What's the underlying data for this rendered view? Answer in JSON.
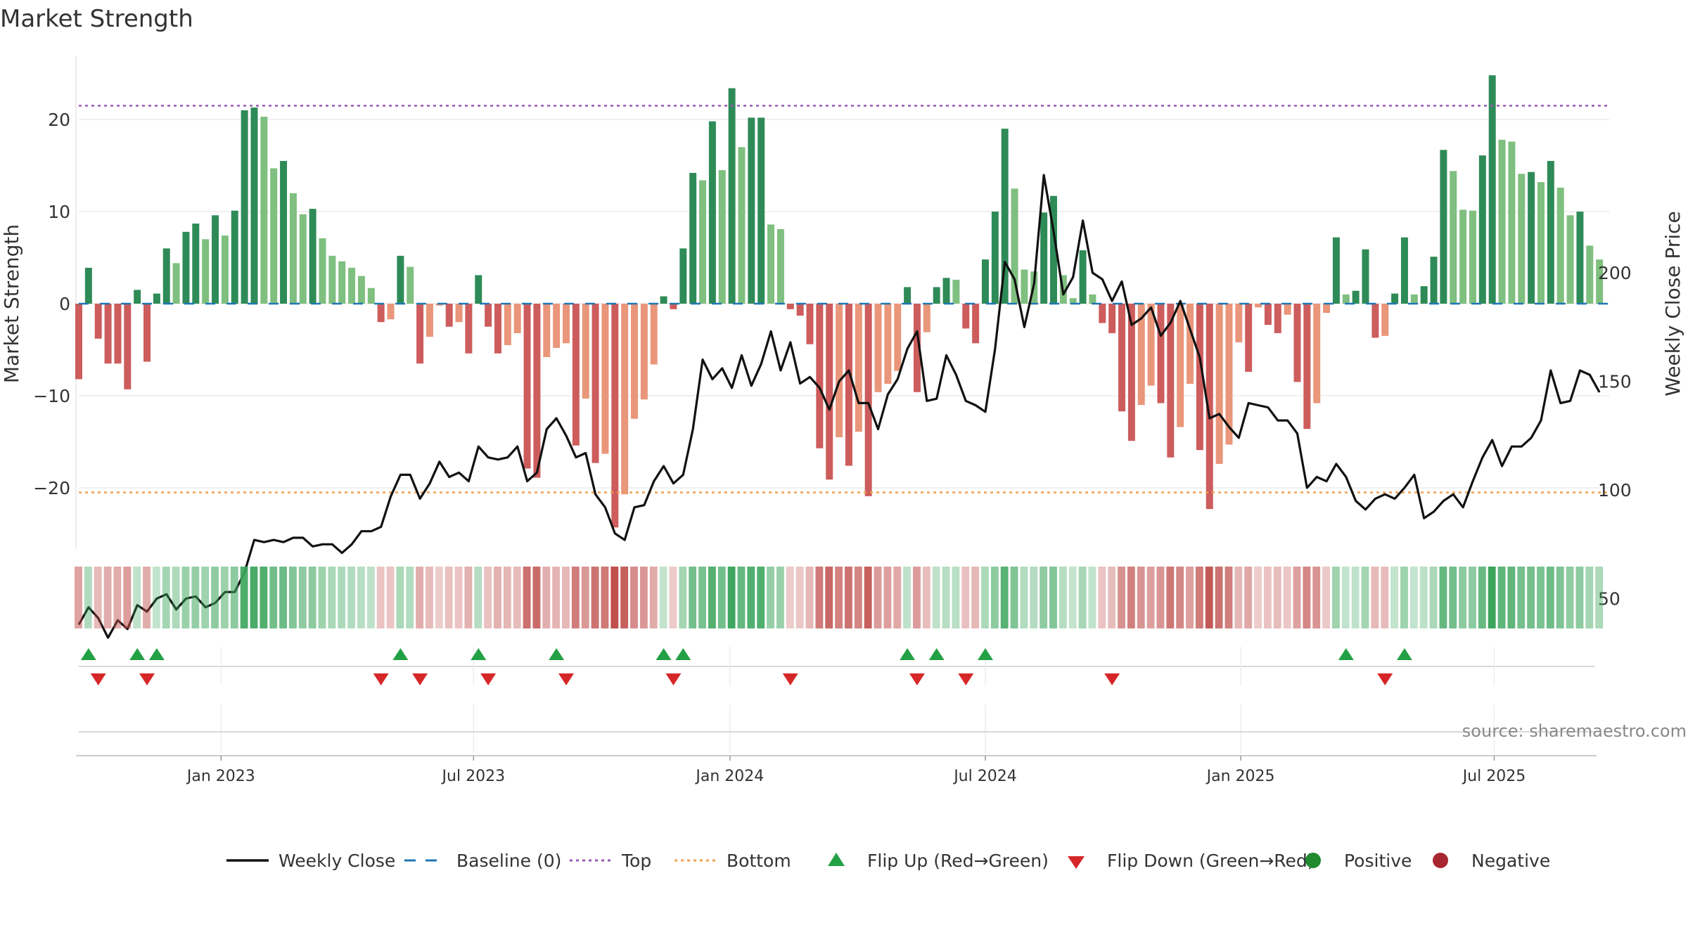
{
  "chart_data": {
    "type": "bar",
    "title": "Market Strength",
    "ylabel_left": "Market Strength",
    "ylabel_right": "Weekly Close Price",
    "source": "source: sharemaestro.com",
    "left_axis": {
      "ylim": [
        -26,
        27
      ],
      "ticks": [
        -20,
        -10,
        0,
        10,
        20
      ],
      "tick_labels": [
        "−20",
        "−10",
        "0",
        "10",
        "20"
      ]
    },
    "right_axis": {
      "ylim": [
        15,
        270
      ],
      "ticks": [
        50,
        100,
        150,
        200
      ],
      "tick_labels": [
        "50",
        "100",
        "150",
        "200"
      ]
    },
    "top_line": 21.5,
    "bottom_line": -20.5,
    "baseline": 0,
    "x_range_weeks": [
      0,
      157
    ],
    "x_ticks": [
      {
        "label": "Jan 2023",
        "week": 14.6
      },
      {
        "label": "Jul 2023",
        "week": 40.5
      },
      {
        "label": "Jan 2024",
        "week": 66.8
      },
      {
        "label": "Jul 2024",
        "week": 93.0
      },
      {
        "label": "Jan 2025",
        "week": 119.2
      },
      {
        "label": "Jul 2025",
        "week": 145.2
      }
    ],
    "strength_values": [
      -8.2,
      3.9,
      -3.8,
      -6.5,
      -6.5,
      -9.3,
      1.5,
      -6.3,
      1.1,
      6.0,
      4.4,
      7.8,
      8.7,
      7.0,
      9.6,
      7.4,
      10.1,
      21.0,
      21.3,
      20.3,
      14.7,
      15.5,
      12.0,
      9.7,
      10.3,
      7.1,
      5.2,
      4.6,
      3.9,
      3.0,
      1.7,
      -2.0,
      -1.7,
      5.2,
      4.0,
      -6.5,
      -3.6,
      -0.2,
      -2.5,
      -2.0,
      -5.4,
      3.1,
      -2.5,
      -5.4,
      -4.5,
      -3.2,
      -17.9,
      -18.9,
      -5.8,
      -4.8,
      -4.3,
      -15.4,
      -10.3,
      -17.3,
      -16.3,
      -24.3,
      -20.7,
      -12.5,
      -10.4,
      -6.6,
      0.8,
      -0.6,
      6.0,
      14.2,
      13.4,
      19.8,
      14.5,
      23.4,
      17.0,
      20.2,
      20.2,
      8.6,
      8.1,
      -0.6,
      -1.3,
      -4.4,
      -15.7,
      -19.1,
      -14.5,
      -17.6,
      -13.9,
      -20.9,
      -9.6,
      -8.7,
      -7.3,
      1.8,
      -9.6,
      -3.1,
      1.8,
      2.8,
      2.6,
      -2.7,
      -4.3,
      4.8,
      10.0,
      19.0,
      12.5,
      3.7,
      3.5,
      9.9,
      11.7,
      3.1,
      0.6,
      5.8,
      1.0,
      -2.1,
      -3.2,
      -11.7,
      -14.9,
      -11.0,
      -8.9,
      -10.8,
      -16.7,
      -13.4,
      -8.7,
      -15.9,
      -22.3,
      -17.4,
      -15.3,
      -4.2,
      -7.4,
      -0.4,
      -2.3,
      -3.2,
      -1.2,
      -8.5,
      -13.6,
      -10.8,
      -1.0,
      7.2,
      1.0,
      1.4,
      5.9,
      -3.7,
      -3.5,
      1.1,
      7.2,
      1.0,
      1.9,
      5.1,
      16.7,
      14.4,
      10.2,
      10.1,
      16.1,
      24.8,
      17.8,
      17.6,
      14.1,
      14.3,
      13.2,
      15.5,
      12.6,
      9.6,
      10.0,
      6.3,
      4.8
    ],
    "weekly_close_points": [
      [
        0,
        38
      ],
      [
        1,
        46
      ],
      [
        2,
        41
      ],
      [
        3,
        32
      ],
      [
        4,
        40
      ],
      [
        5,
        36
      ],
      [
        6,
        47
      ],
      [
        7,
        44
      ],
      [
        8,
        50
      ],
      [
        9,
        52
      ],
      [
        10,
        45
      ],
      [
        11,
        50
      ],
      [
        12,
        51
      ],
      [
        13,
        46
      ],
      [
        14,
        48
      ],
      [
        15,
        53
      ],
      [
        16,
        53
      ],
      [
        17,
        62
      ],
      [
        18,
        77
      ],
      [
        19,
        76
      ],
      [
        20,
        77
      ],
      [
        21,
        76
      ],
      [
        22,
        78
      ],
      [
        23,
        78
      ],
      [
        24,
        74
      ],
      [
        25,
        75
      ],
      [
        26,
        75
      ],
      [
        27,
        71
      ],
      [
        28,
        75
      ],
      [
        29,
        81
      ],
      [
        30,
        81
      ],
      [
        31,
        83
      ],
      [
        32,
        97
      ],
      [
        33,
        107
      ],
      [
        34,
        107
      ],
      [
        35,
        96
      ],
      [
        36,
        103
      ],
      [
        37,
        113
      ],
      [
        38,
        106
      ],
      [
        39,
        108
      ],
      [
        40,
        104
      ],
      [
        41,
        120
      ],
      [
        42,
        115
      ],
      [
        43,
        114
      ],
      [
        44,
        115
      ],
      [
        45,
        120
      ],
      [
        46,
        104
      ],
      [
        47,
        108
      ],
      [
        48,
        128
      ],
      [
        49,
        133
      ],
      [
        50,
        125
      ],
      [
        51,
        115
      ],
      [
        52,
        117
      ],
      [
        53,
        98
      ],
      [
        54,
        92
      ],
      [
        55,
        80
      ],
      [
        56,
        77
      ],
      [
        57,
        92
      ],
      [
        58,
        93
      ],
      [
        59,
        104
      ],
      [
        60,
        111
      ],
      [
        61,
        103
      ],
      [
        62,
        107
      ],
      [
        63,
        128
      ],
      [
        64,
        160
      ],
      [
        65,
        151
      ],
      [
        66,
        156
      ],
      [
        67,
        147
      ],
      [
        68,
        162
      ],
      [
        69,
        148
      ],
      [
        70,
        158
      ],
      [
        71,
        173
      ],
      [
        72,
        155
      ],
      [
        73,
        168
      ],
      [
        74,
        149
      ],
      [
        75,
        152
      ],
      [
        76,
        147
      ],
      [
        77,
        137
      ],
      [
        78,
        150
      ],
      [
        79,
        155
      ],
      [
        80,
        140
      ],
      [
        81,
        140
      ],
      [
        82,
        128
      ],
      [
        83,
        144
      ],
      [
        84,
        151
      ],
      [
        85,
        165
      ],
      [
        86,
        173
      ],
      [
        87,
        141
      ],
      [
        88,
        142
      ],
      [
        89,
        162
      ],
      [
        90,
        153
      ],
      [
        91,
        141
      ],
      [
        92,
        139
      ],
      [
        93,
        136
      ],
      [
        94,
        165
      ],
      [
        95,
        205
      ],
      [
        96,
        197
      ],
      [
        97,
        175
      ],
      [
        98,
        195
      ],
      [
        99,
        245
      ],
      [
        100,
        219
      ],
      [
        101,
        190
      ],
      [
        102,
        198
      ],
      [
        103,
        224
      ],
      [
        104,
        200
      ],
      [
        105,
        197
      ],
      [
        106,
        187
      ],
      [
        107,
        196
      ],
      [
        108,
        176
      ],
      [
        109,
        179
      ],
      [
        110,
        184
      ],
      [
        111,
        171
      ],
      [
        112,
        177
      ],
      [
        113,
        187
      ],
      [
        114,
        174
      ],
      [
        115,
        161
      ],
      [
        116,
        133
      ],
      [
        117,
        135
      ],
      [
        118,
        129
      ],
      [
        119,
        124
      ],
      [
        120,
        140
      ],
      [
        121,
        139
      ],
      [
        122,
        138
      ],
      [
        123,
        132
      ],
      [
        124,
        132
      ],
      [
        125,
        126
      ],
      [
        126,
        101
      ],
      [
        127,
        106
      ],
      [
        128,
        104
      ],
      [
        129,
        112
      ],
      [
        130,
        106
      ],
      [
        131,
        95
      ],
      [
        132,
        91
      ],
      [
        133,
        96
      ],
      [
        134,
        98
      ],
      [
        135,
        96
      ],
      [
        136,
        101
      ],
      [
        137,
        107
      ],
      [
        138,
        87
      ],
      [
        139,
        90
      ],
      [
        140,
        95
      ],
      [
        141,
        98
      ],
      [
        142,
        92
      ],
      [
        143,
        104
      ],
      [
        144,
        115
      ],
      [
        145,
        123
      ],
      [
        146,
        111
      ],
      [
        147,
        120
      ],
      [
        148,
        120
      ],
      [
        149,
        124
      ],
      [
        150,
        132
      ],
      [
        151,
        155
      ],
      [
        152,
        140
      ],
      [
        153,
        141
      ],
      [
        154,
        155
      ],
      [
        155,
        153
      ],
      [
        156,
        145
      ]
    ],
    "flip_up_weeks": [
      1,
      6,
      8,
      33,
      41,
      49,
      60,
      62,
      85,
      88,
      93,
      130,
      136
    ],
    "flip_down_weeks": [
      2,
      7,
      31,
      35,
      42,
      50,
      61,
      73,
      86,
      91,
      106,
      134
    ],
    "bar_colors": {
      "strong_green": "#2E8B57",
      "light_green": "#7FBF7F",
      "strong_red": "#CD5C5C",
      "light_red": "#E9967A",
      "heat_green": "#3BA55C",
      "heat_red": "#C0504D"
    },
    "line_colors": {
      "close": "#111111",
      "baseline": "#1F77B4",
      "top": "#9B59B6",
      "bottom": "#F0A050",
      "flip_up": "#22A045",
      "flip_down": "#D62728",
      "positive": "#1F8A2E",
      "negative": "#A82630"
    },
    "legend": [
      {
        "label": "Weekly Close",
        "kind": "line-solid",
        "color": "#111111"
      },
      {
        "label": "Baseline (0)",
        "kind": "line-dash",
        "color": "#1F77B4"
      },
      {
        "label": "Top",
        "kind": "line-dot",
        "color": "#9B59B6"
      },
      {
        "label": "Bottom",
        "kind": "line-dot",
        "color": "#F0A050"
      },
      {
        "label": "Flip Up (Red→Green)",
        "kind": "tri-up",
        "color": "#22A045"
      },
      {
        "label": "Flip Down (Green→Red)",
        "kind": "tri-down",
        "color": "#D62728"
      },
      {
        "label": "Positive",
        "kind": "dot",
        "color": "#1F8A2E"
      },
      {
        "label": "Negative",
        "kind": "dot",
        "color": "#A82630"
      }
    ]
  }
}
